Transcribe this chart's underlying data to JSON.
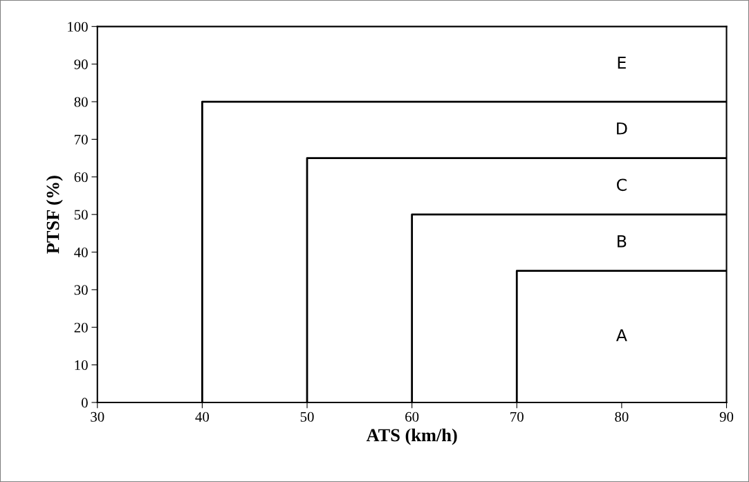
{
  "chart_data": {
    "type": "line",
    "xlabel": "ATS (km/h)",
    "ylabel": "PTSF (%)",
    "series": [
      {
        "color": "#000000",
        "x": [
          40,
          40,
          90
        ],
        "values": [
          0,
          80,
          80
        ]
      },
      {
        "color": "#000000",
        "x": [
          50,
          50,
          90
        ],
        "values": [
          0,
          65,
          65
        ]
      },
      {
        "color": "#000000",
        "x": [
          60,
          60,
          90
        ],
        "values": [
          0,
          50,
          50
        ]
      },
      {
        "color": "#000000",
        "x": [
          70,
          70,
          90
        ],
        "values": [
          0,
          35,
          35
        ]
      }
    ],
    "annotations": [
      "E",
      "D",
      "C",
      "B",
      "A"
    ],
    "xlim": [
      30,
      90
    ],
    "xticks": [
      30,
      40,
      50,
      60,
      70,
      80,
      90
    ],
    "ylim": [
      0,
      100
    ],
    "yticks": [
      0,
      10,
      20,
      30,
      40,
      50,
      60,
      70,
      80,
      90,
      100
    ],
    "grid": false,
    "legend": false,
    "marker": "none",
    "line_style": "solid"
  }
}
